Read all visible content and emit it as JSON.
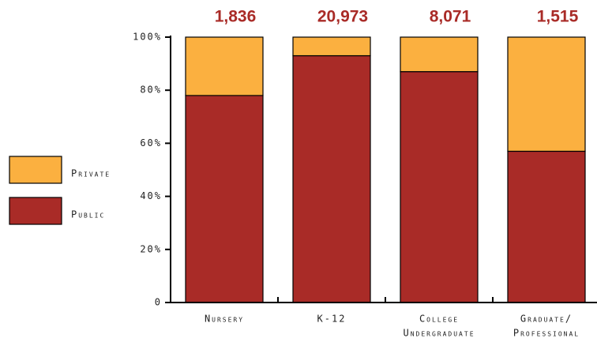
{
  "chart_data": {
    "type": "stacked_bar_100",
    "categories": [
      [
        "Nursery"
      ],
      [
        "K-12"
      ],
      [
        "College",
        "Undergraduate"
      ],
      [
        "Graduate/",
        "Professional"
      ]
    ],
    "totals": [
      "1,836",
      "20,973",
      "8,071",
      "1,515"
    ],
    "series": [
      {
        "name": "Public",
        "color": "#a92b27",
        "values": [
          78,
          93,
          87,
          57
        ]
      },
      {
        "name": "Private",
        "color": "#fbb040",
        "values": [
          22,
          7,
          13,
          43
        ]
      }
    ],
    "ylim": [
      0,
      100
    ],
    "yticks": [
      0,
      {
        "value": 20,
        "label": "20%"
      },
      {
        "value": 40,
        "label": "40%"
      },
      {
        "value": 60,
        "label": "60%"
      },
      {
        "value": 80,
        "label": "80%"
      },
      {
        "value": 100,
        "label": "100%"
      }
    ],
    "legend": "left"
  }
}
